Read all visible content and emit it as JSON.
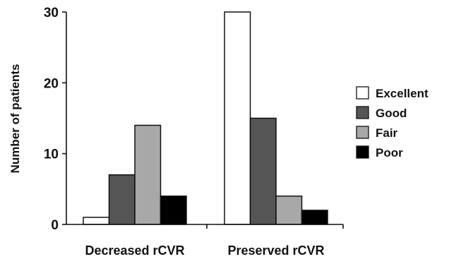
{
  "chart_data": {
    "type": "bar",
    "ylabel": "Number of patients",
    "xlabel": "",
    "title": "",
    "ylim": [
      0,
      30
    ],
    "yticks": [
      0,
      10,
      20,
      30
    ],
    "categories": [
      "Decreased rCVR",
      "Preserved rCVR"
    ],
    "series": [
      {
        "name": "Excellent",
        "color": "#ffffff",
        "values": [
          1,
          30
        ]
      },
      {
        "name": "Good",
        "color": "#555555",
        "values": [
          7,
          15
        ]
      },
      {
        "name": "Fair",
        "color": "#a8a8a8",
        "values": [
          14,
          4
        ]
      },
      {
        "name": "Poor",
        "color": "#000000",
        "values": [
          4,
          2
        ]
      }
    ],
    "legend_position": "right",
    "grid": false
  }
}
